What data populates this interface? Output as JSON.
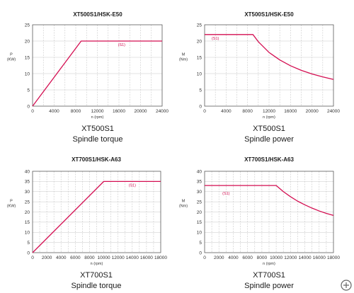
{
  "colors": {
    "curve": "#d40f52",
    "grid": "#c8c8c8",
    "frame": "#444444",
    "text": "#1a1a1a"
  },
  "corner_icon": "circle-plus-icon",
  "chart_data": [
    {
      "type": "line",
      "title": "XT500S1/HSK-E50",
      "caption_model": "XT500S1",
      "caption_label": "Spindle torque",
      "xlabel": "n (rpm)",
      "ylabel": [
        "P",
        "(KW)"
      ],
      "xlim": [
        0,
        24000
      ],
      "ylim": [
        0,
        25
      ],
      "xticks": [
        0,
        4000,
        8000,
        12000,
        16000,
        20000,
        24000
      ],
      "yticks": [
        0,
        5,
        10,
        15,
        20,
        25
      ],
      "grid": true,
      "series": [
        {
          "name": "(S1)",
          "x": [
            0,
            9000,
            24000
          ],
          "y": [
            0,
            20,
            20
          ]
        }
      ],
      "annotation": {
        "text": "(S1)",
        "x": 16500,
        "y": 20
      }
    },
    {
      "type": "line",
      "title": "XT500S1/HSK-E50",
      "caption_model": "XT500S1",
      "caption_label": "Spindle power",
      "xlabel": "n (rpm)",
      "ylabel": [
        "M",
        "(Nm)"
      ],
      "xlim": [
        0,
        24000
      ],
      "ylim": [
        0,
        25
      ],
      "xticks": [
        0,
        4000,
        8000,
        12000,
        16000,
        20000,
        24000
      ],
      "yticks": [
        0,
        5,
        10,
        15,
        20,
        25
      ],
      "grid": true,
      "series": [
        {
          "name": "(S1)",
          "x": [
            0,
            9000,
            10000,
            12000,
            14000,
            16000,
            18000,
            20000,
            22000,
            24000
          ],
          "y": [
            22,
            22,
            19.8,
            16.5,
            14.2,
            12.4,
            11,
            9.9,
            9,
            8.2
          ]
        }
      ],
      "annotation": {
        "text": "(S1)",
        "x": 2000,
        "y": 22
      }
    },
    {
      "type": "line",
      "title": "XT700S1/HSK-A63",
      "caption_model": "XT700S1",
      "caption_label": "Spindle torque",
      "xlabel": "n (rpm)",
      "ylabel": [
        "P",
        "(KW)"
      ],
      "xlim": [
        0,
        18000
      ],
      "ylim": [
        0,
        40
      ],
      "xticks": [
        0,
        2000,
        4000,
        6000,
        8000,
        10000,
        12000,
        14000,
        16000,
        18000
      ],
      "yticks": [
        0,
        5,
        10,
        15,
        20,
        25,
        30,
        35,
        40
      ],
      "grid": true,
      "series": [
        {
          "name": "(S1)",
          "x": [
            0,
            10000,
            18000
          ],
          "y": [
            0,
            35,
            35
          ]
        }
      ],
      "annotation": {
        "text": "(S1)",
        "x": 14000,
        "y": 35
      }
    },
    {
      "type": "line",
      "title": "XT700S1/HSK-A63",
      "caption_model": "XT700S1",
      "caption_label": "Spindle power",
      "xlabel": "n (rpm)",
      "ylabel": [
        "M",
        "(Nm)"
      ],
      "xlim": [
        0,
        18000
      ],
      "ylim": [
        0,
        40
      ],
      "xticks": [
        0,
        2000,
        4000,
        6000,
        8000,
        10000,
        12000,
        14000,
        16000,
        18000
      ],
      "yticks": [
        0,
        5,
        10,
        15,
        20,
        25,
        30,
        35,
        40
      ],
      "grid": true,
      "series": [
        {
          "name": "(S1)",
          "x": [
            0,
            10000,
            11000,
            12000,
            13000,
            14000,
            15000,
            16000,
            17000,
            18000
          ],
          "y": [
            33,
            33,
            30,
            27.5,
            25.3,
            23.5,
            21.9,
            20.5,
            19.3,
            18.3
          ]
        }
      ],
      "annotation": {
        "text": "(S1)",
        "x": 3000,
        "y": 31
      }
    }
  ]
}
